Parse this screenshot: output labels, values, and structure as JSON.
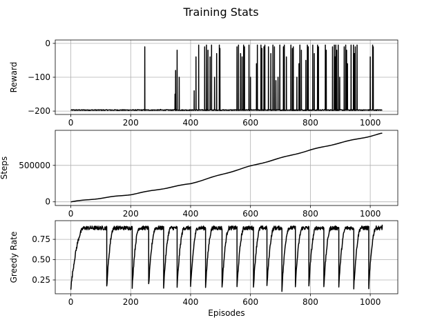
{
  "figure": {
    "title": "Training Stats",
    "background": "#ffffff",
    "line_color": "#000000",
    "grid_color": "#b0b0b0"
  },
  "chart_data": [
    {
      "type": "line",
      "ylabel": "Reward",
      "xlabel": "",
      "xlim": [
        -52,
        1092
      ],
      "ylim": [
        -210,
        10
      ],
      "xticks": [
        0,
        200,
        400,
        600,
        800,
        1000
      ],
      "yticks": [
        0,
        -100,
        -200
      ],
      "ytick_labels": [
        "0",
        "−100",
        "−200"
      ],
      "grid": true,
      "baseline": -197,
      "series": [
        {
          "spikes": [
            [
              247,
              -10
            ],
            [
              300,
              -195
            ],
            [
              348,
              -150
            ],
            [
              350,
              -80
            ],
            [
              355,
              -20
            ],
            [
              362,
              -100
            ],
            [
              412,
              -140
            ],
            [
              418,
              -40
            ],
            [
              427,
              -5
            ],
            [
              447,
              -10
            ],
            [
              453,
              -5
            ],
            [
              458,
              -20
            ],
            [
              465,
              -40
            ],
            [
              470,
              -5
            ],
            [
              480,
              -100
            ],
            [
              487,
              -30
            ],
            [
              496,
              -5
            ],
            [
              498,
              -15
            ],
            [
              555,
              -10
            ],
            [
              560,
              -5
            ],
            [
              567,
              -30
            ],
            [
              572,
              -40
            ],
            [
              577,
              -5
            ],
            [
              580,
              -10
            ],
            [
              595,
              -5
            ],
            [
              600,
              -100
            ],
            [
              620,
              -60
            ],
            [
              623,
              -5
            ],
            [
              635,
              -5
            ],
            [
              638,
              -15
            ],
            [
              645,
              -10
            ],
            [
              648,
              -5
            ],
            [
              660,
              -10
            ],
            [
              668,
              -30
            ],
            [
              675,
              -5
            ],
            [
              680,
              -10
            ],
            [
              685,
              -110
            ],
            [
              692,
              -100
            ],
            [
              698,
              -5
            ],
            [
              710,
              -10
            ],
            [
              713,
              -5
            ],
            [
              720,
              -40
            ],
            [
              735,
              -5
            ],
            [
              740,
              -15
            ],
            [
              743,
              -10
            ],
            [
              755,
              -100
            ],
            [
              762,
              -60
            ],
            [
              765,
              -5
            ],
            [
              770,
              -20
            ],
            [
              785,
              -50
            ],
            [
              790,
              -5
            ],
            [
              793,
              -10
            ],
            [
              808,
              -5
            ],
            [
              813,
              -30
            ],
            [
              824,
              -5
            ],
            [
              827,
              -10
            ],
            [
              850,
              -5
            ],
            [
              853,
              -20
            ],
            [
              874,
              -10
            ],
            [
              880,
              -5
            ],
            [
              883,
              -40
            ],
            [
              885,
              -5
            ],
            [
              888,
              -20
            ],
            [
              893,
              -5
            ],
            [
              898,
              -100
            ],
            [
              913,
              -10
            ],
            [
              918,
              -5
            ],
            [
              921,
              -20
            ],
            [
              924,
              -60
            ],
            [
              936,
              -5
            ],
            [
              944,
              -5
            ],
            [
              947,
              -30
            ],
            [
              950,
              -10
            ],
            [
              956,
              -5
            ],
            [
              1000,
              -40
            ],
            [
              1008,
              -5
            ],
            [
              1010,
              -10
            ]
          ],
          "x_end": 1040
        }
      ]
    },
    {
      "type": "line",
      "ylabel": "Steps",
      "xlabel": "",
      "xlim": [
        -52,
        1092
      ],
      "ylim": [
        -50000,
        980000
      ],
      "xticks": [
        0,
        200,
        400,
        600,
        800,
        1000
      ],
      "yticks": [
        0,
        500000
      ],
      "grid": true,
      "series": [
        {
          "x": [
            0,
            100,
            200,
            300,
            400,
            500,
            600,
            700,
            800,
            900,
            1000,
            1040
          ],
          "y": [
            0,
            50000,
            100000,
            175000,
            250000,
            370000,
            490000,
            600000,
            710000,
            810000,
            900000,
            940000
          ]
        }
      ]
    },
    {
      "type": "line",
      "ylabel": "Greedy Rate",
      "xlabel": "Episodes",
      "xlim": [
        -52,
        1092
      ],
      "ylim": [
        0.08,
        0.98
      ],
      "xticks": [
        0,
        200,
        400,
        600,
        800,
        1000
      ],
      "yticks": [
        0.25,
        0.5,
        0.75
      ],
      "ytick_labels": [
        "0.25",
        "0.50",
        "0.75"
      ],
      "grid": true,
      "series": [
        {
          "cycles": [
            [
              0,
              120,
              0.15
            ],
            [
              120,
              205,
              0.17
            ],
            [
              205,
              260,
              0.17
            ],
            [
              260,
              310,
              0.18
            ],
            [
              310,
              355,
              0.17
            ],
            [
              355,
              400,
              0.17
            ],
            [
              400,
              450,
              0.15
            ],
            [
              450,
              505,
              0.17
            ],
            [
              505,
              555,
              0.15
            ],
            [
              555,
              610,
              0.16
            ],
            [
              610,
              655,
              0.17
            ],
            [
              655,
              705,
              0.17
            ],
            [
              705,
              750,
              0.13
            ],
            [
              750,
              795,
              0.19
            ],
            [
              795,
              845,
              0.18
            ],
            [
              845,
              895,
              0.18
            ],
            [
              895,
              945,
              0.18
            ],
            [
              945,
              995,
              0.16
            ],
            [
              995,
              1040,
              0.16
            ]
          ],
          "plateau": 0.89
        }
      ]
    }
  ]
}
